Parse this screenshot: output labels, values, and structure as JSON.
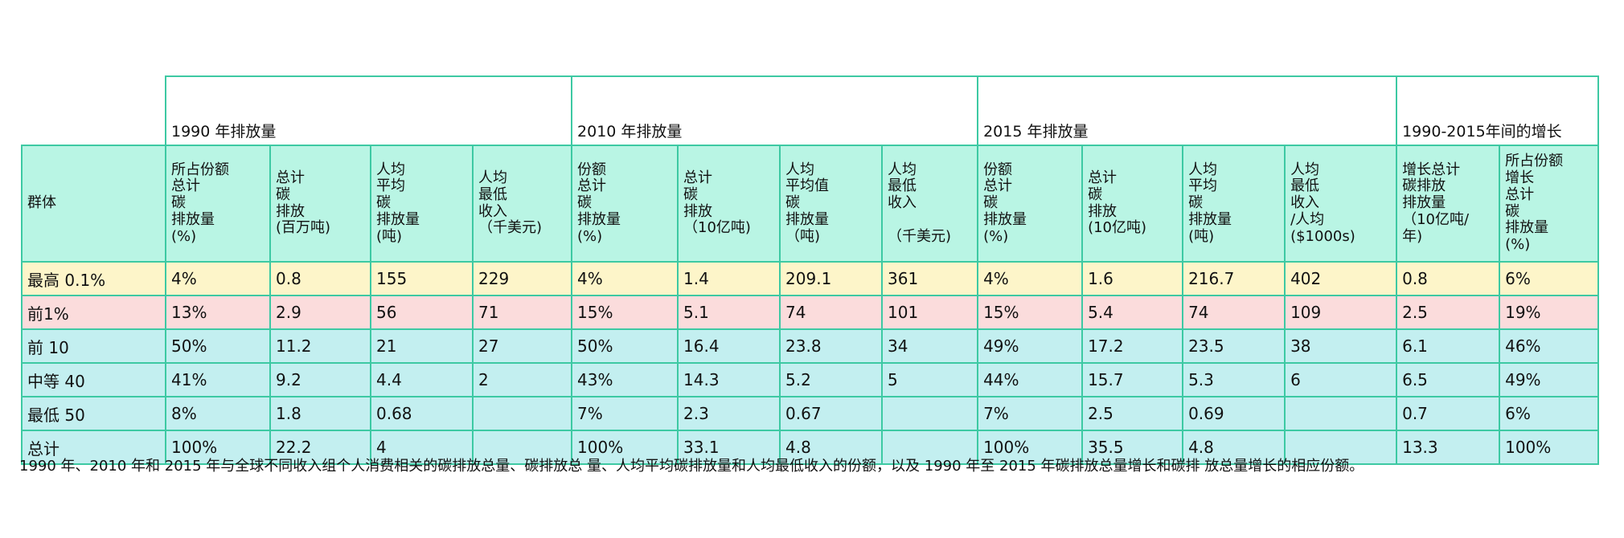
{
  "table": {
    "groups": [
      "1990 年排放量",
      "2010 年排放量",
      "2015 年排放量",
      "1990-2015年间的增长"
    ],
    "headers": [
      "群体",
      "所占份额\n总计\n碳\n排放量\n(%)",
      "总计\n碳\n排放\n(百万吨)",
      "人均\n平均\n碳\n排放量\n(吨)",
      "人均\n最低\n收入\n（千美元)",
      "份额\n总计\n碳\n排放量\n(%)",
      "总计\n碳\n排放\n（10亿吨)",
      "人均\n平均值\n碳\n排放量\n（吨)",
      "人均\n最低\n收入\n\n（千美元)",
      "份额\n总计\n碳\n排放量\n(%)",
      "总计\n碳\n排放\n(10亿吨)",
      "人均\n平均\n碳\n排放量\n(吨)",
      "人均\n最低\n收入\n/人均\n($1000s)",
      "增长总计\n碳排放\n排放量\n（10亿吨/\n年)",
      "所占份额\n增长\n总计\n碳\n排放量\n(%)"
    ],
    "rows": [
      [
        "最高 0.1%",
        "4%",
        "0.8",
        "155",
        "229",
        "4%",
        "1.4",
        "209.1",
        "361",
        "4%",
        "1.6",
        "216.7",
        "402",
        "0.8",
        "6%"
      ],
      [
        "前1%",
        "13%",
        "2.9",
        "56",
        "71",
        "15%",
        "5.1",
        "74",
        "101",
        "15%",
        "5.4",
        "74",
        "109",
        "2.5",
        "19%"
      ],
      [
        "前 10",
        "50%",
        "11.2",
        "21",
        "27",
        "50%",
        "16.4",
        "23.8",
        "34",
        "49%",
        "17.2",
        "23.5",
        "38",
        "6.1",
        "46%"
      ],
      [
        "中等 40",
        "41%",
        "9.2",
        "4.4",
        "2",
        "43%",
        "14.3",
        "5.2",
        "5",
        "44%",
        "15.7",
        "5.3",
        "6",
        "6.5",
        "49%"
      ],
      [
        "最低 50",
        "8%",
        "1.8",
        "0.68",
        null,
        "7%",
        "2.3",
        "0.67",
        null,
        "7%",
        "2.5",
        "0.69",
        null,
        "0.7",
        "6%"
      ],
      [
        "总计",
        "100%",
        "22.2",
        "4",
        null,
        "100%",
        "33.1",
        "4.8",
        null,
        "100%",
        "35.5",
        "4.8",
        null,
        "13.3",
        "100%"
      ]
    ]
  },
  "caption": "1990 年、2010 年和 2015 年与全球不同收入组个人消费相关的碳排放总量、碳排放总 量、人均平均碳排放量和人均最低收入的份额，以及 1990 年至 2015 年碳排放总量增长和碳排 放总量增长的相应份额。"
}
